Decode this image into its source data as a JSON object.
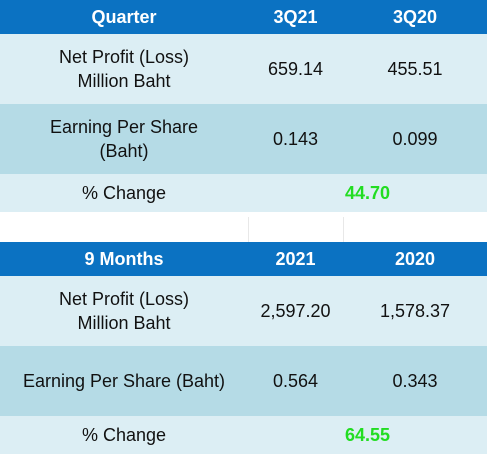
{
  "quarter_table": {
    "header": {
      "col1": "Quarter",
      "col2": "3Q21",
      "col3": "3Q20"
    },
    "rows": [
      {
        "label_line1": "Net Profit (Loss)",
        "label_line2": "Million Baht",
        "v1": "659.14",
        "v2": "455.51"
      },
      {
        "label_line1": "Earning Per Share",
        "label_line2": "(Baht)",
        "v1": "0.143",
        "v2": "0.099"
      }
    ],
    "change_label": "% Change",
    "change_value": "44.70"
  },
  "nine_months_table": {
    "header": {
      "col1": "9 Months",
      "col2": "2021",
      "col3": "2020"
    },
    "rows": [
      {
        "label_line1": "Net Profit (Loss)",
        "label_line2": "Million Baht",
        "v1": "2,597.20",
        "v2": "1,578.37"
      },
      {
        "label": "Earning Per Share (Baht)",
        "v1": "0.564",
        "v2": "0.343"
      }
    ],
    "change_label": "% Change",
    "change_value": "64.55"
  },
  "colors": {
    "header_bg": "#0b72c2",
    "row_light": "#dceef4",
    "row_mid": "#b5dbe6",
    "change_text": "#22dd22"
  }
}
